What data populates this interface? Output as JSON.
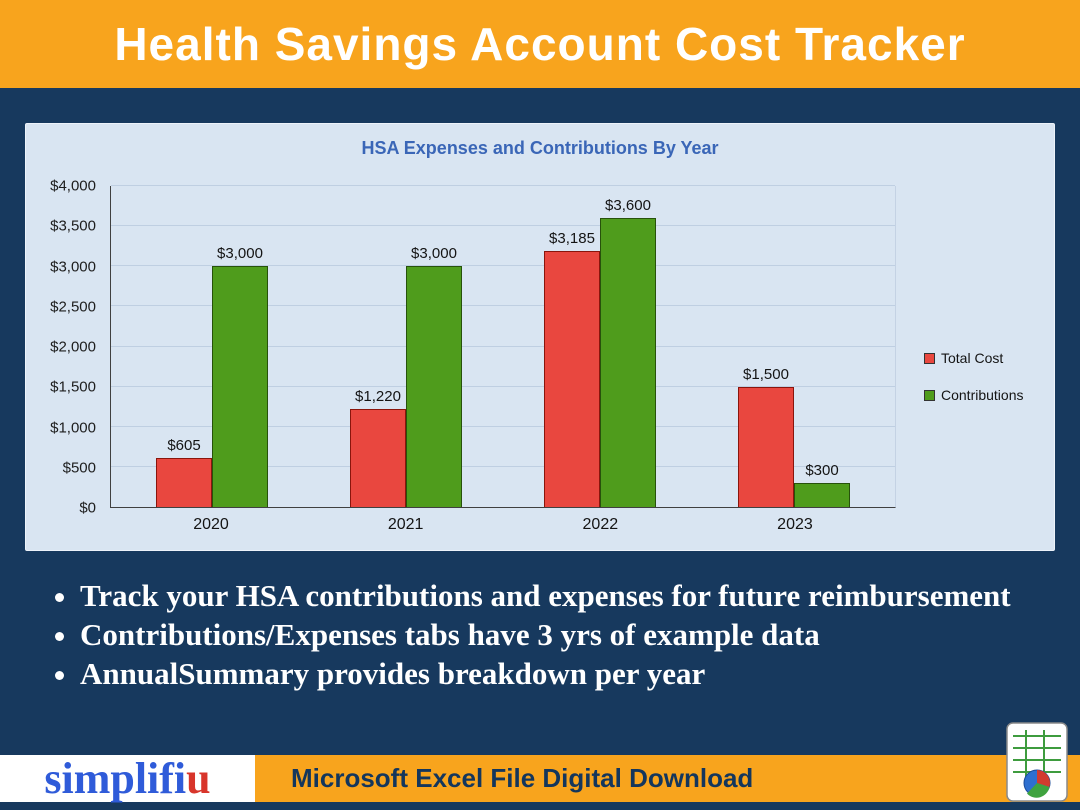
{
  "colors": {
    "banner_orange": "#F8A41D",
    "background_navy": "#17395E",
    "panel_blue": "#D9E5F2",
    "chart_title_blue": "#3A66B7",
    "total_cost_red": "#E9473F",
    "contributions_green": "#4F9C1C",
    "logo_blue": "#2F5BD9",
    "logo_red": "#D8352B",
    "footer_text_navy": "#14365C"
  },
  "header": {
    "title": "Health Savings Account Cost Tracker"
  },
  "chart_data": {
    "type": "bar",
    "title": "HSA Expenses and Contributions By Year",
    "categories": [
      "2020",
      "2021",
      "2022",
      "2023"
    ],
    "series": [
      {
        "name": "Total Cost",
        "color": "#E9473F",
        "border": "#8A150C",
        "values": [
          605,
          1220,
          3185,
          1500
        ],
        "labels": [
          "$605",
          "$1,220",
          "$3,185",
          "$1,500"
        ]
      },
      {
        "name": "Contributions",
        "color": "#4F9C1C",
        "border": "#27520B",
        "values": [
          3000,
          3000,
          3600,
          300
        ],
        "labels": [
          "$3,000",
          "$3,000",
          "$3,600",
          "$300"
        ]
      }
    ],
    "xlabel": "",
    "ylabel": "",
    "ylim": [
      0,
      4000
    ],
    "ytick_step": 500,
    "ytick_labels": [
      "$0",
      "$500",
      "$1,000",
      "$1,500",
      "$2,000",
      "$2,500",
      "$3,000",
      "$3,500",
      "$4,000"
    ],
    "legend_position": "right",
    "grid": true
  },
  "bullets": [
    "Track your HSA contributions and expenses for future reimbursement",
    "Contributions/Expenses tabs have 3 yrs of example data",
    "AnnualSummary provides breakdown per year"
  ],
  "footer": {
    "logo_main": "simplifi",
    "logo_accent": "u",
    "text": "Microsoft Excel File Digital Download"
  }
}
